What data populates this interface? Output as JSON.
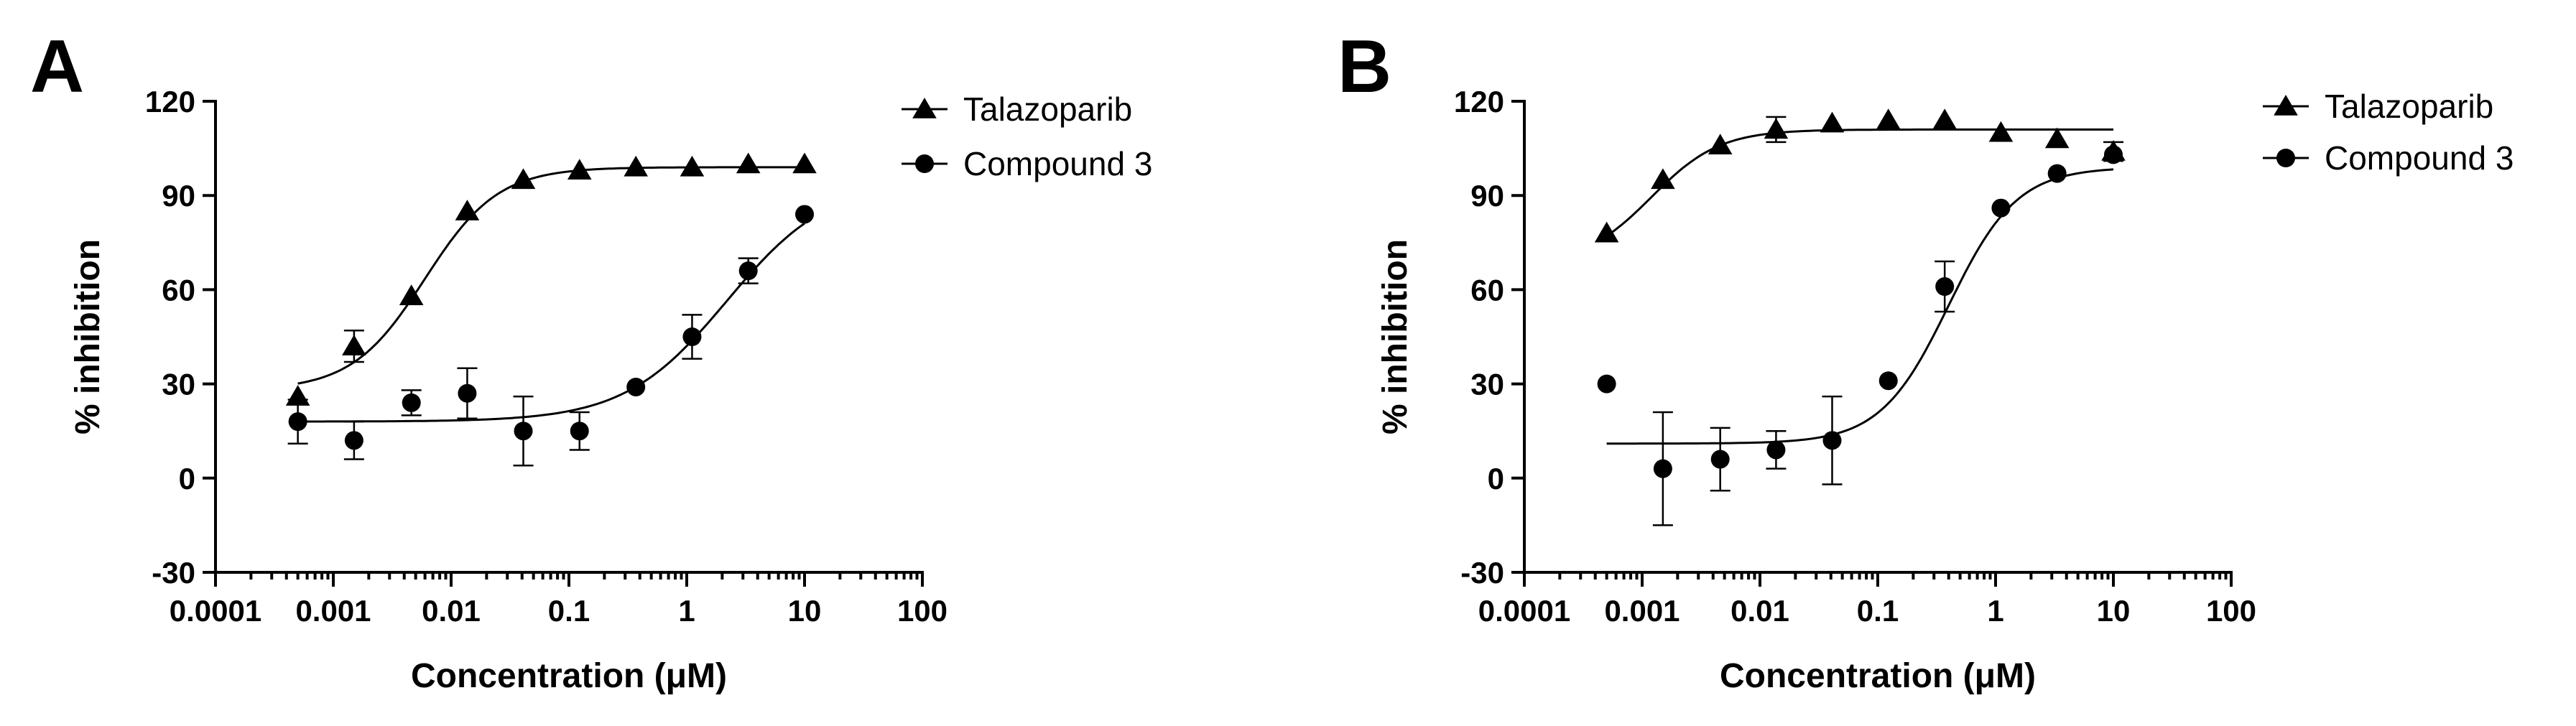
{
  "chart_data": [
    {
      "panel_label": "A",
      "type": "scatter",
      "xlabel": "Concentration (μM)",
      "ylabel": "% inhibition",
      "x_scale": "log",
      "xlim": [
        0.0001,
        100
      ],
      "ylim": [
        -30,
        120
      ],
      "x_ticks": [
        0.0001,
        0.001,
        0.01,
        0.1,
        1,
        10,
        100
      ],
      "x_tick_labels": [
        "0.0001",
        "0.001",
        "0.01",
        "0.1",
        "1",
        "10",
        "100"
      ],
      "y_ticks": [
        -30,
        0,
        30,
        60,
        90,
        120
      ],
      "y_tick_labels": [
        "-30",
        "0",
        "30",
        "60",
        "90",
        "120"
      ],
      "legend_position": "top-right",
      "series": [
        {
          "name": "Talazoparib",
          "marker": "triangle",
          "x": [
            0.0005,
            0.0015,
            0.0046,
            0.0137,
            0.041,
            0.123,
            0.37,
            1.11,
            3.33,
            10
          ],
          "y": [
            26,
            42,
            58,
            85,
            95,
            98,
            99,
            99,
            100,
            100
          ],
          "err": [
            0,
            5,
            0,
            0,
            0,
            0,
            0,
            0,
            0,
            0
          ],
          "fit": {
            "bottom": 28,
            "top": 99,
            "ec50": 0.006,
            "hill": 1.4
          }
        },
        {
          "name": "Compound 3",
          "marker": "circle",
          "x": [
            0.0005,
            0.0015,
            0.0046,
            0.0137,
            0.041,
            0.123,
            0.37,
            1.11,
            3.33,
            10
          ],
          "y": [
            18,
            12,
            24,
            27,
            15,
            15,
            29,
            45,
            66,
            84
          ],
          "err": [
            7,
            6,
            4,
            8,
            11,
            6,
            0,
            7,
            4,
            0
          ],
          "fit": {
            "bottom": 18,
            "top": 95,
            "ec50": 2.2,
            "hill": 1.0
          }
        }
      ]
    },
    {
      "panel_label": "B",
      "type": "scatter",
      "xlabel": "Concentration (μM)",
      "ylabel": "% inhibition",
      "x_scale": "log",
      "xlim": [
        0.0001,
        100
      ],
      "ylim": [
        -30,
        120
      ],
      "x_ticks": [
        0.0001,
        0.001,
        0.01,
        0.1,
        1,
        10,
        100
      ],
      "x_tick_labels": [
        "0.0001",
        "0.001",
        "0.01",
        "0.1",
        "1",
        "10",
        "100"
      ],
      "y_ticks": [
        -30,
        0,
        30,
        60,
        90,
        120
      ],
      "y_tick_labels": [
        "-30",
        "0",
        "30",
        "60",
        "90",
        "120"
      ],
      "legend_position": "top-right",
      "series": [
        {
          "name": "Talazoparib",
          "marker": "triangle",
          "x": [
            0.0005,
            0.0015,
            0.0046,
            0.0137,
            0.041,
            0.123,
            0.37,
            1.11,
            3.33,
            10
          ],
          "y": [
            78,
            95,
            106,
            111,
            113,
            114,
            114,
            110,
            108,
            104
          ],
          "err": [
            0,
            0,
            0,
            4,
            0,
            0,
            0,
            0,
            0,
            3
          ],
          "fit": {
            "bottom": 68,
            "top": 111,
            "ec50": 0.0012,
            "hill": 1.5
          }
        },
        {
          "name": "Compound 3",
          "marker": "circle",
          "x": [
            0.0005,
            0.0015,
            0.0046,
            0.0137,
            0.041,
            0.123,
            0.37,
            1.11,
            3.33,
            10
          ],
          "y": [
            30,
            3,
            6,
            9,
            12,
            31,
            61,
            86,
            97,
            103
          ],
          "err": [
            0,
            18,
            10,
            6,
            14,
            0,
            8,
            0,
            0,
            0
          ],
          "fit": {
            "bottom": 11,
            "top": 99,
            "ec50": 0.4,
            "hill": 1.5
          }
        }
      ]
    }
  ]
}
